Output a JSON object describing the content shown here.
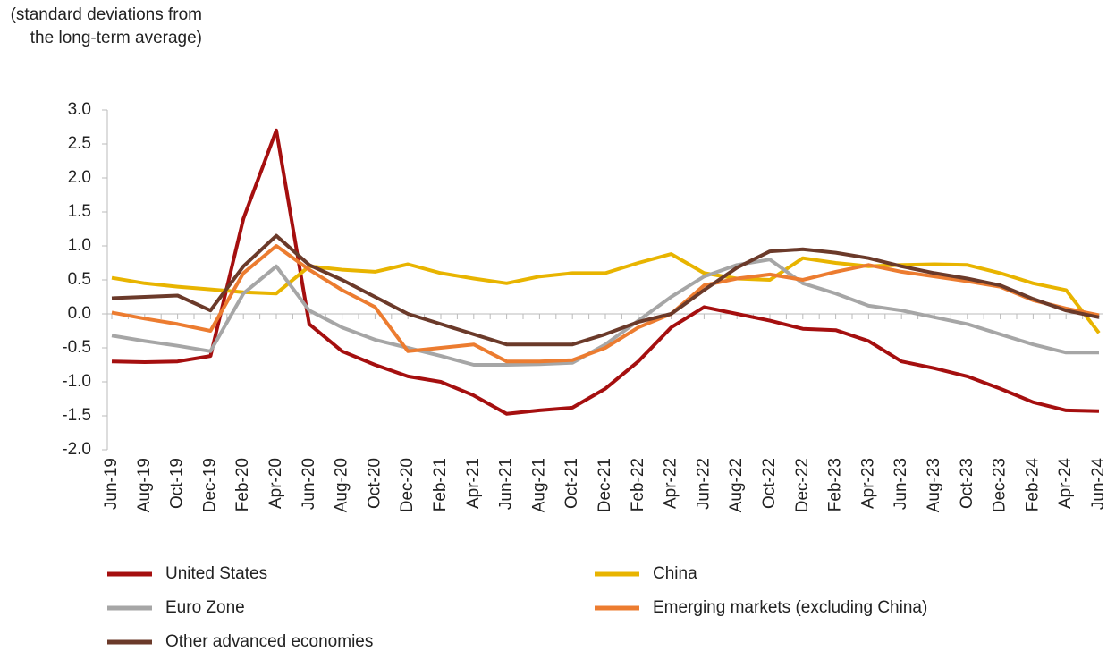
{
  "chart_data": {
    "type": "line",
    "y_label": "(standard deviations from the long-term average)",
    "categories": [
      "Jun-19",
      "Aug-19",
      "Oct-19",
      "Dec-19",
      "Feb-20",
      "Apr-20",
      "Jun-20",
      "Aug-20",
      "Oct-20",
      "Dec-20",
      "Feb-21",
      "Apr-21",
      "Jun-21",
      "Aug-21",
      "Oct-21",
      "Dec-21",
      "Feb-22",
      "Apr-22",
      "Jun-22",
      "Aug-22",
      "Oct-22",
      "Dec-22",
      "Feb-23",
      "Apr-23",
      "Jun-23",
      "Aug-23",
      "Oct-23",
      "Dec-23",
      "Feb-24",
      "Apr-24",
      "Jun-24"
    ],
    "series": [
      {
        "name": "United States",
        "color": "#a50f0f",
        "values": [
          -0.7,
          -0.71,
          -0.7,
          -0.62,
          1.4,
          2.7,
          -0.15,
          -0.55,
          -0.75,
          -0.92,
          -1.0,
          -1.2,
          -1.47,
          -1.42,
          -1.38,
          -1.1,
          -0.7,
          -0.2,
          0.1,
          0.0,
          -0.1,
          -0.22,
          -0.24,
          -0.4,
          -0.7,
          -0.8,
          -0.92,
          -1.1,
          -1.3,
          -1.42,
          -1.43
        ]
      },
      {
        "name": "China",
        "color": "#e8b400",
        "values": [
          0.53,
          0.45,
          0.4,
          0.36,
          0.32,
          0.3,
          0.7,
          0.65,
          0.62,
          0.73,
          0.6,
          0.52,
          0.45,
          0.55,
          0.6,
          0.6,
          0.75,
          0.88,
          0.6,
          0.52,
          0.5,
          0.82,
          0.75,
          0.7,
          0.72,
          0.73,
          0.72,
          0.6,
          0.45,
          0.35,
          -0.28
        ]
      },
      {
        "name": "Euro Zone",
        "color": "#a6a6a6",
        "values": [
          -0.32,
          -0.4,
          -0.47,
          -0.55,
          0.3,
          0.7,
          0.05,
          -0.2,
          -0.38,
          -0.5,
          -0.62,
          -0.75,
          -0.75,
          -0.74,
          -0.72,
          -0.45,
          -0.1,
          0.25,
          0.55,
          0.72,
          0.8,
          0.45,
          0.3,
          0.12,
          0.05,
          -0.05,
          -0.15,
          -0.3,
          -0.45,
          -0.57,
          -0.57
        ]
      },
      {
        "name": "Emerging markets (excluding China)",
        "color": "#ec7c30",
        "values": [
          0.02,
          -0.07,
          -0.15,
          -0.25,
          0.6,
          1.0,
          0.65,
          0.35,
          0.1,
          -0.55,
          -0.5,
          -0.45,
          -0.7,
          -0.7,
          -0.68,
          -0.5,
          -0.2,
          0.0,
          0.42,
          0.52,
          0.58,
          0.5,
          0.62,
          0.72,
          0.62,
          0.55,
          0.48,
          0.4,
          0.2,
          0.08,
          -0.02
        ]
      },
      {
        "name": "Other advanced economies",
        "color": "#6b3a2a",
        "values": [
          0.23,
          0.25,
          0.27,
          0.05,
          0.7,
          1.15,
          0.72,
          0.5,
          0.25,
          0.0,
          -0.15,
          -0.3,
          -0.45,
          -0.45,
          -0.45,
          -0.3,
          -0.12,
          0.0,
          0.35,
          0.68,
          0.92,
          0.95,
          0.9,
          0.82,
          0.7,
          0.6,
          0.52,
          0.42,
          0.22,
          0.05,
          -0.05
        ]
      }
    ],
    "ylim": [
      -2,
      3
    ],
    "yticks": [
      {
        "value": 3,
        "label": "3.0"
      },
      2.5,
      {
        "value": 2,
        "label": "2.0"
      },
      1.5,
      {
        "value": 1,
        "label": "1.0"
      },
      0.5,
      {
        "value": 0,
        "label": "0.0"
      },
      -0.5,
      {
        "value": -1,
        "label": "-1.0"
      },
      -1.5,
      {
        "value": -2,
        "label": "-2.0"
      }
    ]
  }
}
